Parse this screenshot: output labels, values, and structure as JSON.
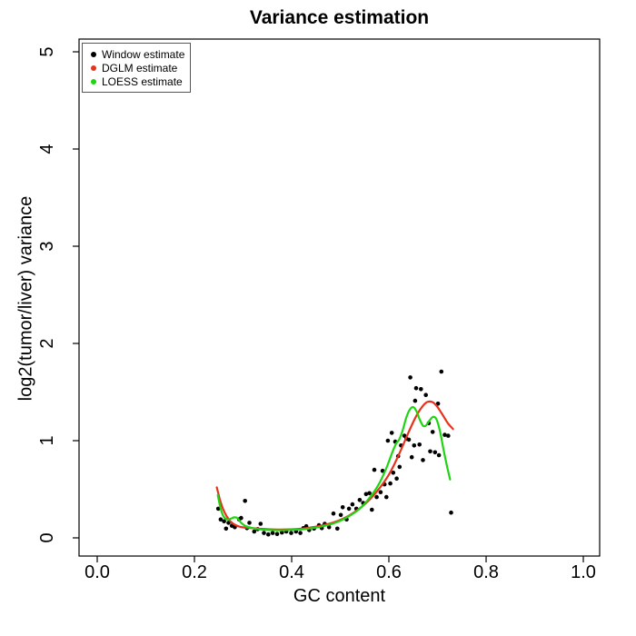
{
  "figure": {
    "background": "#ffffff"
  },
  "chart_data": {
    "type": "scatter",
    "title": "Variance estimation",
    "xlabel": "GC content",
    "ylabel": "log2(tumor/liver) variance",
    "xlim": [
      -0.0374,
      1.0336
    ],
    "ylim": [
      -0.187,
      5.131
    ],
    "grid": false,
    "x_ticks": {
      "values": [
        0.0,
        0.2,
        0.4,
        0.6,
        0.8,
        1.0
      ],
      "labels": [
        "0.0",
        "0.2",
        "0.4",
        "0.6",
        "0.8",
        "1.0"
      ]
    },
    "y_ticks": {
      "values": [
        0,
        1,
        2,
        3,
        4,
        5
      ],
      "labels": [
        "0",
        "1",
        "2",
        "3",
        "4",
        "5"
      ]
    },
    "legend": {
      "position": "top-left",
      "items": [
        {
          "label": "Window estimate",
          "color": "#000000",
          "marker": "dot"
        },
        {
          "label": "DGLM estimate",
          "color": "#e8321c",
          "marker": "dot"
        },
        {
          "label": "LOESS estimate",
          "color": "#1fd412",
          "marker": "dot"
        }
      ]
    },
    "series": [
      {
        "name": "Window estimate",
        "type": "points",
        "color": "#000000",
        "marker_radius": 2.3,
        "points": [
          [
            0.249,
            0.3
          ],
          [
            0.254,
            0.19
          ],
          [
            0.261,
            0.17
          ],
          [
            0.265,
            0.095
          ],
          [
            0.27,
            0.155
          ],
          [
            0.277,
            0.125
          ],
          [
            0.283,
            0.11
          ],
          [
            0.292,
            0.19
          ],
          [
            0.296,
            0.205
          ],
          [
            0.304,
            0.38
          ],
          [
            0.308,
            0.1
          ],
          [
            0.313,
            0.155
          ],
          [
            0.323,
            0.065
          ],
          [
            0.33,
            0.09
          ],
          [
            0.336,
            0.145
          ],
          [
            0.343,
            0.05
          ],
          [
            0.352,
            0.035
          ],
          [
            0.361,
            0.05
          ],
          [
            0.37,
            0.04
          ],
          [
            0.38,
            0.055
          ],
          [
            0.389,
            0.065
          ],
          [
            0.399,
            0.05
          ],
          [
            0.409,
            0.065
          ],
          [
            0.418,
            0.05
          ],
          [
            0.424,
            0.1
          ],
          [
            0.43,
            0.12
          ],
          [
            0.436,
            0.08
          ],
          [
            0.446,
            0.095
          ],
          [
            0.456,
            0.13
          ],
          [
            0.462,
            0.1
          ],
          [
            0.468,
            0.145
          ],
          [
            0.477,
            0.11
          ],
          [
            0.486,
            0.25
          ],
          [
            0.494,
            0.095
          ],
          [
            0.501,
            0.235
          ],
          [
            0.505,
            0.315
          ],
          [
            0.513,
            0.19
          ],
          [
            0.518,
            0.3
          ],
          [
            0.525,
            0.345
          ],
          [
            0.533,
            0.3
          ],
          [
            0.54,
            0.39
          ],
          [
            0.547,
            0.36
          ],
          [
            0.553,
            0.45
          ],
          [
            0.56,
            0.46
          ],
          [
            0.565,
            0.29
          ],
          [
            0.57,
            0.7
          ],
          [
            0.575,
            0.42
          ],
          [
            0.583,
            0.47
          ],
          [
            0.587,
            0.69
          ],
          [
            0.591,
            0.55
          ],
          [
            0.595,
            0.42
          ],
          [
            0.598,
            1.0
          ],
          [
            0.603,
            0.56
          ],
          [
            0.606,
            1.08
          ],
          [
            0.609,
            0.67
          ],
          [
            0.613,
            0.99
          ],
          [
            0.616,
            0.61
          ],
          [
            0.619,
            0.84
          ],
          [
            0.622,
            0.73
          ],
          [
            0.625,
            0.95
          ],
          [
            0.632,
            1.05
          ],
          [
            0.636,
            1.02
          ],
          [
            0.641,
            1.01
          ],
          [
            0.644,
            1.65
          ],
          [
            0.647,
            0.83
          ],
          [
            0.652,
            0.95
          ],
          [
            0.654,
            1.41
          ],
          [
            0.656,
            1.54
          ],
          [
            0.663,
            0.96
          ],
          [
            0.666,
            1.53
          ],
          [
            0.67,
            0.8
          ],
          [
            0.676,
            1.47
          ],
          [
            0.682,
            1.18
          ],
          [
            0.685,
            0.89
          ],
          [
            0.69,
            1.09
          ],
          [
            0.695,
            0.88
          ],
          [
            0.701,
            1.38
          ],
          [
            0.703,
            0.85
          ],
          [
            0.708,
            1.71
          ],
          [
            0.715,
            1.06
          ],
          [
            0.722,
            1.05
          ],
          [
            0.728,
            0.26
          ]
        ]
      },
      {
        "name": "DGLM estimate",
        "type": "line",
        "color": "#e8321c",
        "stroke_width": 2.2,
        "points": [
          [
            0.246,
            0.52
          ],
          [
            0.252,
            0.4
          ],
          [
            0.259,
            0.295
          ],
          [
            0.266,
            0.225
          ],
          [
            0.274,
            0.17
          ],
          [
            0.283,
            0.135
          ],
          [
            0.293,
            0.115
          ],
          [
            0.305,
            0.105
          ],
          [
            0.32,
            0.1
          ],
          [
            0.34,
            0.092
          ],
          [
            0.37,
            0.086
          ],
          [
            0.4,
            0.088
          ],
          [
            0.43,
            0.1
          ],
          [
            0.46,
            0.125
          ],
          [
            0.49,
            0.165
          ],
          [
            0.52,
            0.235
          ],
          [
            0.55,
            0.345
          ],
          [
            0.575,
            0.475
          ],
          [
            0.6,
            0.65
          ],
          [
            0.62,
            0.85
          ],
          [
            0.64,
            1.08
          ],
          [
            0.655,
            1.24
          ],
          [
            0.668,
            1.345
          ],
          [
            0.678,
            1.395
          ],
          [
            0.688,
            1.4
          ],
          [
            0.698,
            1.36
          ],
          [
            0.71,
            1.27
          ],
          [
            0.722,
            1.175
          ],
          [
            0.732,
            1.12
          ]
        ]
      },
      {
        "name": "LOESS estimate",
        "type": "line",
        "color": "#1fd412",
        "stroke_width": 2.2,
        "points": [
          [
            0.248,
            0.44
          ],
          [
            0.254,
            0.3
          ],
          [
            0.26,
            0.22
          ],
          [
            0.267,
            0.19
          ],
          [
            0.274,
            0.195
          ],
          [
            0.281,
            0.21
          ],
          [
            0.288,
            0.205
          ],
          [
            0.296,
            0.155
          ],
          [
            0.306,
            0.12
          ],
          [
            0.32,
            0.1
          ],
          [
            0.34,
            0.085
          ],
          [
            0.37,
            0.078
          ],
          [
            0.4,
            0.082
          ],
          [
            0.43,
            0.092
          ],
          [
            0.46,
            0.115
          ],
          [
            0.49,
            0.155
          ],
          [
            0.515,
            0.215
          ],
          [
            0.54,
            0.3
          ],
          [
            0.56,
            0.41
          ],
          [
            0.578,
            0.54
          ],
          [
            0.595,
            0.72
          ],
          [
            0.607,
            0.88
          ],
          [
            0.615,
            0.97
          ],
          [
            0.621,
            1.01
          ],
          [
            0.628,
            1.1
          ],
          [
            0.636,
            1.24
          ],
          [
            0.643,
            1.32
          ],
          [
            0.65,
            1.345
          ],
          [
            0.657,
            1.3
          ],
          [
            0.664,
            1.21
          ],
          [
            0.671,
            1.15
          ],
          [
            0.677,
            1.16
          ],
          [
            0.684,
            1.21
          ],
          [
            0.691,
            1.245
          ],
          [
            0.698,
            1.22
          ],
          [
            0.705,
            1.1
          ],
          [
            0.712,
            0.92
          ],
          [
            0.719,
            0.75
          ],
          [
            0.726,
            0.6
          ]
        ]
      }
    ]
  }
}
